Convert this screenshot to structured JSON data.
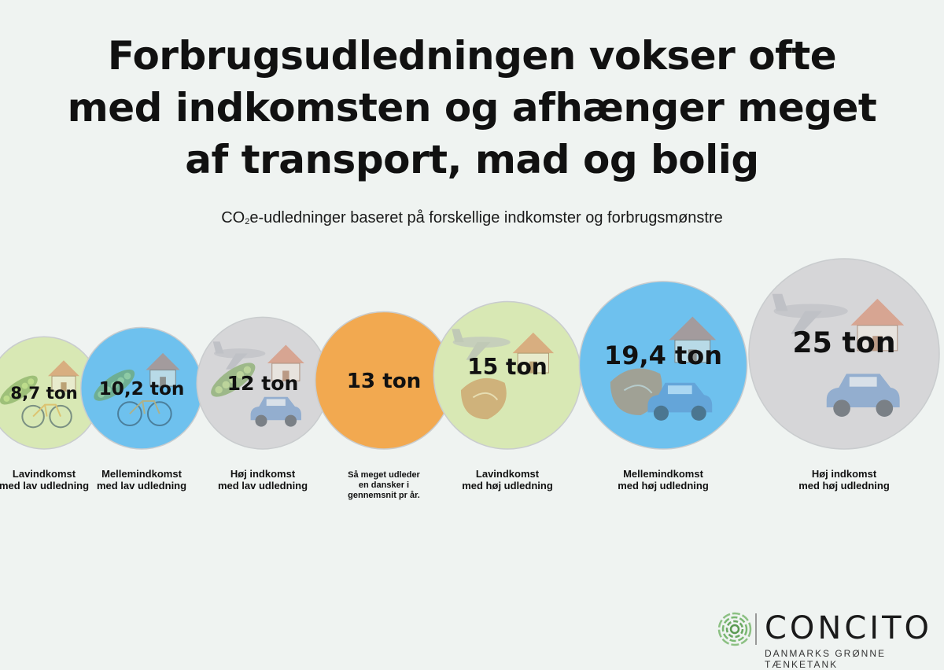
{
  "title": [
    "Forbrugsudledningen vokser ofte",
    "med indkomsten og afhænger meget",
    "af transport, mad og bolig"
  ],
  "subtitle": {
    "pre": "CO",
    "sub": "2",
    "post": "e-udledninger baseret på forskellige indkomster og forbrugsmønstre"
  },
  "chart_data": {
    "type": "bubble",
    "unit": "ton",
    "items": [
      {
        "value": 8.7,
        "label": "8,7 ton",
        "caption": [
          "Lavindkomst",
          "med lav udledning"
        ],
        "color": "#d8e8b4",
        "icons": [
          "peas-icon",
          "house-icon",
          "bicycle-icon"
        ]
      },
      {
        "value": 10.2,
        "label": "10,2 ton",
        "caption": [
          "Mellemindkomst",
          "med lav udledning"
        ],
        "color": "#6ec1ee",
        "icons": [
          "peas-icon",
          "house-icon",
          "bicycle-icon"
        ]
      },
      {
        "value": 12,
        "label": "12 ton",
        "caption": [
          "Høj indkomst",
          "med lav udledning"
        ],
        "color": "#d6d6d8",
        "icons": [
          "plane-icon",
          "house-icon",
          "peas-icon",
          "car-icon"
        ]
      },
      {
        "value": 13,
        "label": "13 ton",
        "caption": [
          "Så meget udleder",
          "en dansker i",
          "gennemsnit pr år."
        ],
        "color": "#f2a950",
        "icons": []
      },
      {
        "value": 15,
        "label": "15 ton",
        "caption": [
          "Lavindkomst",
          "med høj udledning"
        ],
        "color": "#d8e8b4",
        "icons": [
          "plane-icon",
          "house-icon",
          "steak-icon"
        ]
      },
      {
        "value": 19.4,
        "label": "19,4 ton",
        "caption": [
          "Mellemindkomst",
          "med høj udledning"
        ],
        "color": "#6ec1ee",
        "icons": [
          "steak-icon",
          "house-icon",
          "car-icon"
        ]
      },
      {
        "value": 25,
        "label": "25 ton",
        "caption": [
          "Høj indkomst",
          "med høj udledning"
        ],
        "color": "#d6d6d8",
        "icons": [
          "plane-icon",
          "house-icon",
          "car-icon"
        ]
      }
    ]
  },
  "logo": {
    "name": "CONCITO",
    "tagline": "DANMARKS GRØNNE TÆNKETANK"
  },
  "colors": {
    "background": "#eff3f1",
    "green": "#d8e8b4",
    "blue": "#6ec1ee",
    "grey": "#d6d6d8",
    "orange": "#f2a950"
  }
}
